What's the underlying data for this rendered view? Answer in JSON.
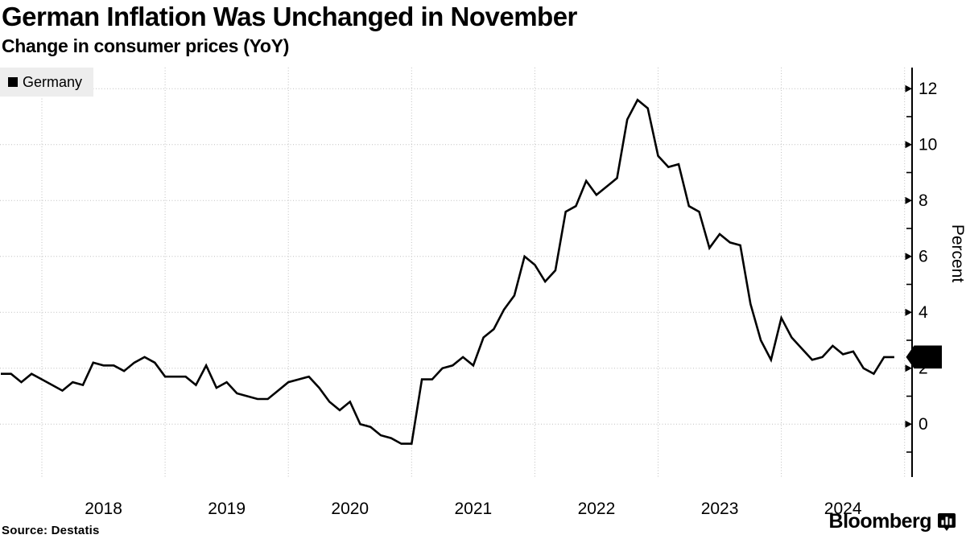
{
  "chart_data": {
    "type": "line",
    "title": "German Inflation Was Unchanged in November",
    "subtitle": "Change in consumer prices (YoY)",
    "ylabel": "Percent",
    "xlabel": "",
    "grid": "dotted",
    "legend_position": "top-left",
    "last_value_label": "2",
    "line_color": "#000000",
    "x_start": "2017-08",
    "x_end": "2024-11",
    "frequency": "monthly",
    "x_tick_labels": [
      "2018",
      "2019",
      "2020",
      "2021",
      "2022",
      "2023",
      "2024"
    ],
    "y_ticks": [
      0,
      2,
      4,
      6,
      8,
      10,
      12
    ],
    "y_minor_ticks": [
      -1,
      1,
      3,
      5,
      7,
      9,
      11
    ],
    "ylim": [
      -1.9,
      12.8
    ],
    "series": [
      {
        "name": "Germany",
        "color": "#000000",
        "values": [
          1.8,
          1.8,
          1.5,
          1.8,
          1.6,
          1.4,
          1.2,
          1.5,
          1.4,
          2.2,
          2.1,
          2.1,
          1.9,
          2.2,
          2.4,
          2.2,
          1.7,
          1.7,
          1.7,
          1.4,
          2.1,
          1.3,
          1.5,
          1.1,
          1.0,
          0.9,
          0.9,
          1.2,
          1.5,
          1.6,
          1.7,
          1.3,
          0.8,
          0.5,
          0.8,
          0.0,
          -0.1,
          -0.4,
          -0.5,
          -0.7,
          -0.7,
          1.6,
          1.6,
          2.0,
          2.1,
          2.4,
          2.1,
          3.1,
          3.4,
          4.1,
          4.6,
          6.0,
          5.7,
          5.1,
          5.5,
          7.6,
          7.8,
          8.7,
          8.2,
          8.5,
          8.8,
          10.9,
          11.6,
          11.3,
          9.6,
          9.2,
          9.3,
          7.8,
          7.6,
          6.3,
          6.8,
          6.5,
          6.4,
          4.3,
          3.0,
          2.3,
          3.8,
          3.1,
          2.7,
          2.3,
          2.4,
          2.8,
          2.5,
          2.6,
          2.0,
          1.8,
          2.4,
          2.4
        ]
      }
    ]
  },
  "footer": {
    "source": "Source: Destatis",
    "brand": "Bloomberg"
  }
}
